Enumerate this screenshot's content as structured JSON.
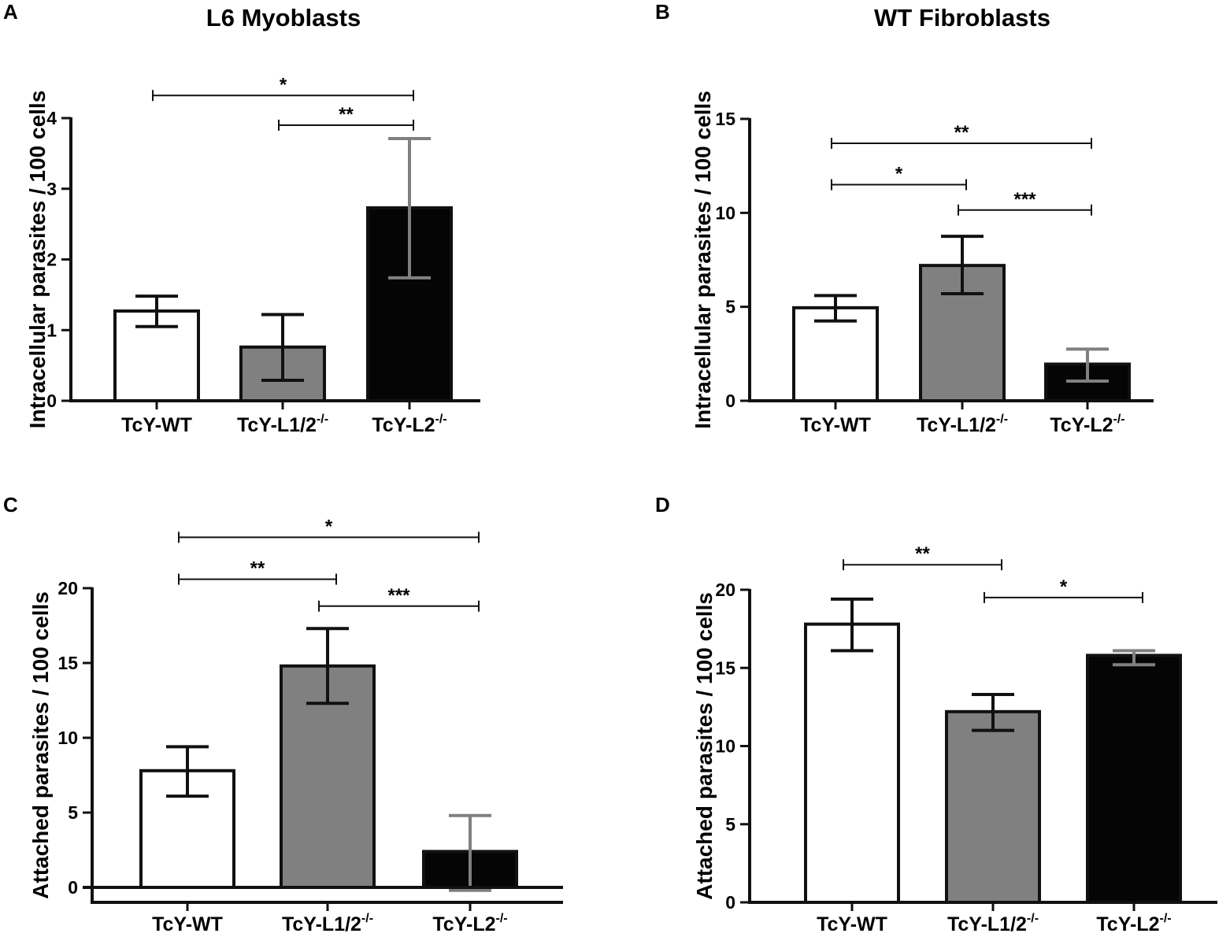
{
  "chart_data": [
    {
      "panel": "A",
      "title": "L6 Myoblasts",
      "type": "bar",
      "ylabel": "Intracellular parasites / 100 cells",
      "ylim": [
        0,
        4
      ],
      "yticks": [
        0,
        1,
        2,
        3,
        4
      ],
      "categories": [
        {
          "base": "TcY-WT",
          "sup": ""
        },
        {
          "base": "TcY-L1/2",
          "sup": "-/-"
        },
        {
          "base": "TcY-L2",
          "sup": "-/-"
        }
      ],
      "values": [
        1.27,
        0.76,
        2.73
      ],
      "err_low": [
        1.05,
        0.29,
        1.74
      ],
      "err_high": [
        1.48,
        1.22,
        3.71
      ],
      "bar_colors": [
        "#ffffff",
        "#808080",
        "#050505"
      ],
      "err_colors": [
        "#111111",
        "#111111",
        "#808080"
      ],
      "significance": [
        {
          "from": 0,
          "to": 2,
          "label": "*",
          "level": 4.32
        },
        {
          "from": 1,
          "to": 2,
          "label": "**",
          "level": 3.9
        }
      ]
    },
    {
      "panel": "B",
      "title": "WT Fibroblasts",
      "type": "bar",
      "ylabel": "Intracellular parasites / 100 cells",
      "ylim": [
        0,
        15
      ],
      "yticks": [
        0,
        5,
        10,
        15
      ],
      "categories": [
        {
          "base": "TcY-WT",
          "sup": ""
        },
        {
          "base": "TcY-L1/2",
          "sup": "-/-"
        },
        {
          "base": "TcY-L2",
          "sup": "-/-"
        }
      ],
      "values": [
        4.95,
        7.2,
        1.95
      ],
      "err_low": [
        4.25,
        5.7,
        1.05
      ],
      "err_high": [
        5.6,
        8.75,
        2.75
      ],
      "bar_colors": [
        "#ffffff",
        "#808080",
        "#050505"
      ],
      "err_colors": [
        "#111111",
        "#111111",
        "#808080"
      ],
      "significance": [
        {
          "from": 0,
          "to": 2,
          "label": "**",
          "level": 13.7
        },
        {
          "from": 0,
          "to": 1,
          "label": "*",
          "level": 11.5
        },
        {
          "from": 1,
          "to": 2,
          "label": "***",
          "level": 10.15
        }
      ]
    },
    {
      "panel": "C",
      "title": "",
      "type": "bar",
      "ylabel": "Attached parasites / 100 cells",
      "ylim": [
        -1,
        20
      ],
      "yticks": [
        0,
        5,
        10,
        15,
        20
      ],
      "categories": [
        {
          "base": "TcY-WT",
          "sup": ""
        },
        {
          "base": "TcY-L1/2",
          "sup": "-/-"
        },
        {
          "base": "TcY-L2",
          "sup": "-/-"
        }
      ],
      "values": [
        7.8,
        14.8,
        2.4
      ],
      "err_low": [
        6.1,
        12.3,
        -0.2
      ],
      "err_high": [
        9.4,
        17.3,
        4.8
      ],
      "bar_colors": [
        "#ffffff",
        "#808080",
        "#050505"
      ],
      "err_colors": [
        "#111111",
        "#111111",
        "#808080"
      ],
      "significance": [
        {
          "from": 0,
          "to": 2,
          "label": "*",
          "level": 23.4
        },
        {
          "from": 0,
          "to": 1,
          "label": "**",
          "level": 20.6
        },
        {
          "from": 1,
          "to": 2,
          "label": "***",
          "level": 18.8
        }
      ]
    },
    {
      "panel": "D",
      "title": "",
      "type": "bar",
      "ylabel": "Attached parasites / 100 cells",
      "ylim": [
        0,
        20
      ],
      "yticks": [
        0,
        5,
        10,
        15,
        20
      ],
      "categories": [
        {
          "base": "TcY-WT",
          "sup": ""
        },
        {
          "base": "TcY-L1/2",
          "sup": "-/-"
        },
        {
          "base": "TcY-L2",
          "sup": "-/-"
        }
      ],
      "values": [
        17.8,
        12.2,
        15.8
      ],
      "err_low": [
        16.1,
        11.0,
        15.2
      ],
      "err_high": [
        19.4,
        13.3,
        16.1
      ],
      "bar_colors": [
        "#ffffff",
        "#808080",
        "#050505"
      ],
      "err_colors": [
        "#111111",
        "#111111",
        "#808080"
      ],
      "significance": [
        {
          "from": 0,
          "to": 1,
          "label": "**",
          "level": 21.6
        },
        {
          "from": 1,
          "to": 2,
          "label": "*",
          "level": 19.5
        }
      ]
    }
  ]
}
